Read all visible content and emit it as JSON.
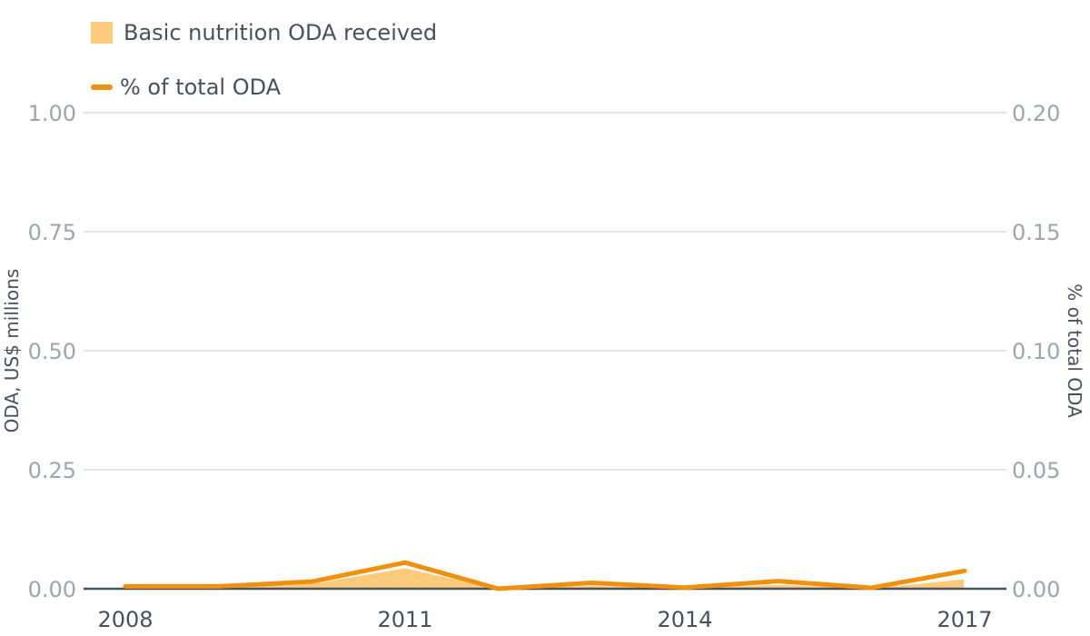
{
  "chart_data": {
    "type": "area+line",
    "x": [
      2008,
      2009,
      2010,
      2011,
      2012,
      2013,
      2014,
      2015,
      2016,
      2017
    ],
    "x_ticks": [
      "2008",
      "2011",
      "2014",
      "2017"
    ],
    "series": [
      {
        "name": "Basic nutrition ODA received",
        "type": "area",
        "axis": "left",
        "color": "#fdc97b",
        "values": [
          0.002,
          0.002,
          0.012,
          0.045,
          0.001,
          0.008,
          0.002,
          0.01,
          0.002,
          0.022
        ]
      },
      {
        "name": "% of total ODA",
        "type": "line",
        "axis": "right",
        "color": "#f0900c",
        "values": [
          0.001,
          0.001,
          0.003,
          0.011,
          0.0,
          0.0025,
          0.0005,
          0.0032,
          0.0004,
          0.0075
        ]
      }
    ],
    "ylabel_left": "ODA, US$ millions",
    "ylabel_right": "% of total ODA",
    "ylim_left": [
      0,
      1
    ],
    "ylim_right": [
      0,
      0.2
    ],
    "yticks_left": [
      "0.00",
      "0.25",
      "0.50",
      "0.75",
      "1.00"
    ],
    "yticks_right": [
      "0.00",
      "0.05",
      "0.10",
      "0.15",
      "0.20"
    ],
    "grid": true,
    "legend_position": "top-left"
  }
}
